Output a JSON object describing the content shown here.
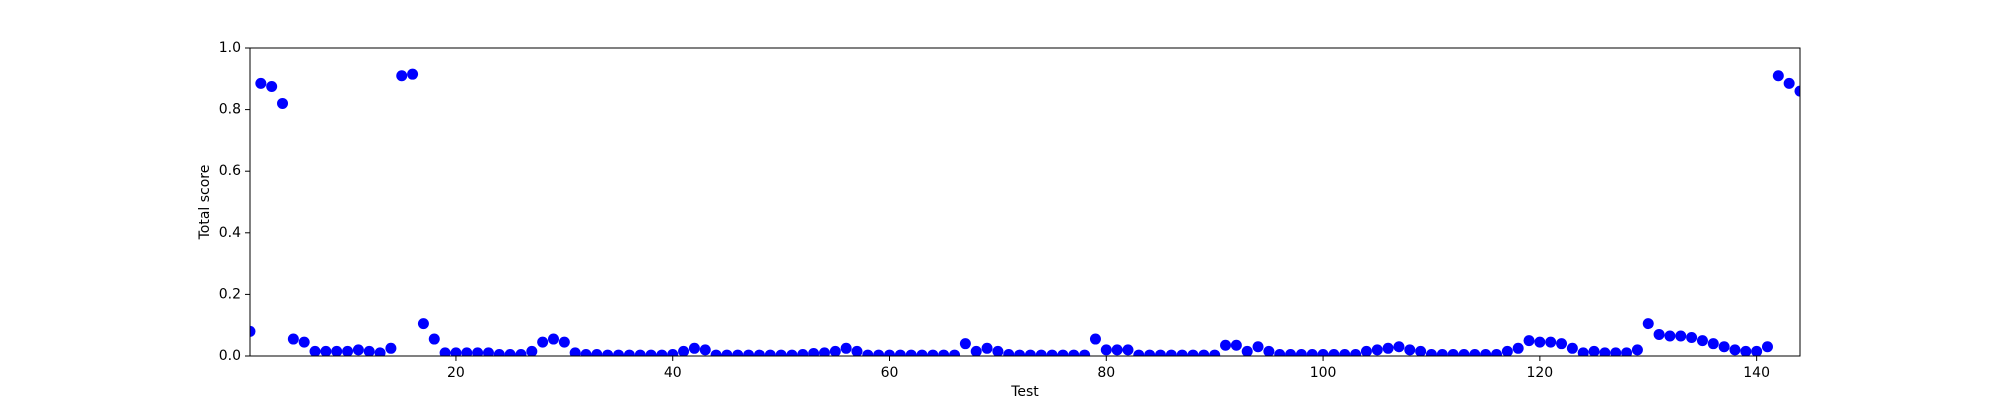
{
  "chart_data": {
    "type": "scatter",
    "x_label": "Test",
    "y_label": "Total score",
    "color": "#0000ff",
    "x": [
      1,
      2,
      3,
      4,
      5,
      6,
      7,
      8,
      9,
      10,
      11,
      12,
      13,
      14,
      15,
      16,
      17,
      18,
      19,
      20,
      21,
      22,
      23,
      24,
      25,
      26,
      27,
      28,
      29,
      30,
      31,
      32,
      33,
      34,
      35,
      36,
      37,
      38,
      39,
      40,
      41,
      42,
      43,
      44,
      45,
      46,
      47,
      48,
      49,
      50,
      51,
      52,
      53,
      54,
      55,
      56,
      57,
      58,
      59,
      60,
      61,
      62,
      63,
      64,
      65,
      66,
      67,
      68,
      69,
      70,
      71,
      72,
      73,
      74,
      75,
      76,
      77,
      78,
      79,
      80,
      81,
      82,
      83,
      84,
      85,
      86,
      87,
      88,
      89,
      90,
      91,
      92,
      93,
      94,
      95,
      96,
      97,
      98,
      99,
      100,
      101,
      102,
      103,
      104,
      105,
      106,
      107,
      108,
      109,
      110,
      111,
      112,
      113,
      114,
      115,
      116,
      117,
      118,
      119,
      120,
      121,
      122,
      123,
      124,
      125,
      126,
      127,
      128,
      129,
      130,
      131,
      132,
      133,
      134,
      135,
      136,
      137,
      138,
      139,
      140,
      141,
      142,
      143,
      144
    ],
    "values": [
      0.08,
      0.885,
      0.875,
      0.82,
      0.055,
      0.045,
      0.015,
      0.015,
      0.015,
      0.015,
      0.02,
      0.015,
      0.01,
      0.025,
      0.91,
      0.915,
      0.105,
      0.055,
      0.01,
      0.01,
      0.01,
      0.01,
      0.01,
      0.005,
      0.005,
      0.005,
      0.015,
      0.045,
      0.055,
      0.045,
      0.01,
      0.005,
      0.005,
      0.003,
      0.003,
      0.003,
      0.003,
      0.003,
      0.003,
      0.005,
      0.015,
      0.025,
      0.02,
      0.003,
      0.003,
      0.003,
      0.003,
      0.003,
      0.003,
      0.003,
      0.003,
      0.005,
      0.008,
      0.01,
      0.015,
      0.025,
      0.015,
      0.003,
      0.003,
      0.003,
      0.003,
      0.003,
      0.003,
      0.003,
      0.003,
      0.003,
      0.04,
      0.015,
      0.025,
      0.015,
      0.005,
      0.003,
      0.003,
      0.003,
      0.003,
      0.003,
      0.003,
      0.003,
      0.055,
      0.02,
      0.02,
      0.02,
      0.003,
      0.003,
      0.003,
      0.003,
      0.003,
      0.003,
      0.003,
      0.003,
      0.035,
      0.035,
      0.015,
      0.03,
      0.015,
      0.005,
      0.005,
      0.005,
      0.005,
      0.005,
      0.005,
      0.005,
      0.005,
      0.015,
      0.02,
      0.025,
      0.03,
      0.02,
      0.015,
      0.005,
      0.005,
      0.005,
      0.005,
      0.005,
      0.005,
      0.005,
      0.015,
      0.025,
      0.05,
      0.045,
      0.045,
      0.04,
      0.025,
      0.01,
      0.015,
      0.01,
      0.01,
      0.01,
      0.02,
      0.105,
      0.07,
      0.065,
      0.065,
      0.06,
      0.05,
      0.04,
      0.03,
      0.02,
      0.015,
      0.015,
      0.03,
      0.91,
      0.885,
      0.86
    ],
    "xlim": [
      1,
      144
    ],
    "xticks": [
      20,
      40,
      60,
      80,
      100,
      120,
      140
    ],
    "ylim": [
      0,
      1
    ],
    "yticks": [
      {
        "value": 0,
        "label": "0.0"
      },
      {
        "value": 0.2,
        "label": "0.2"
      },
      {
        "value": 0.4,
        "label": "0.4"
      },
      {
        "value": 0.6,
        "label": "0.6"
      },
      {
        "value": 0.8,
        "label": "0.8"
      },
      {
        "value": 1,
        "label": "1.0"
      }
    ],
    "grid": false
  }
}
